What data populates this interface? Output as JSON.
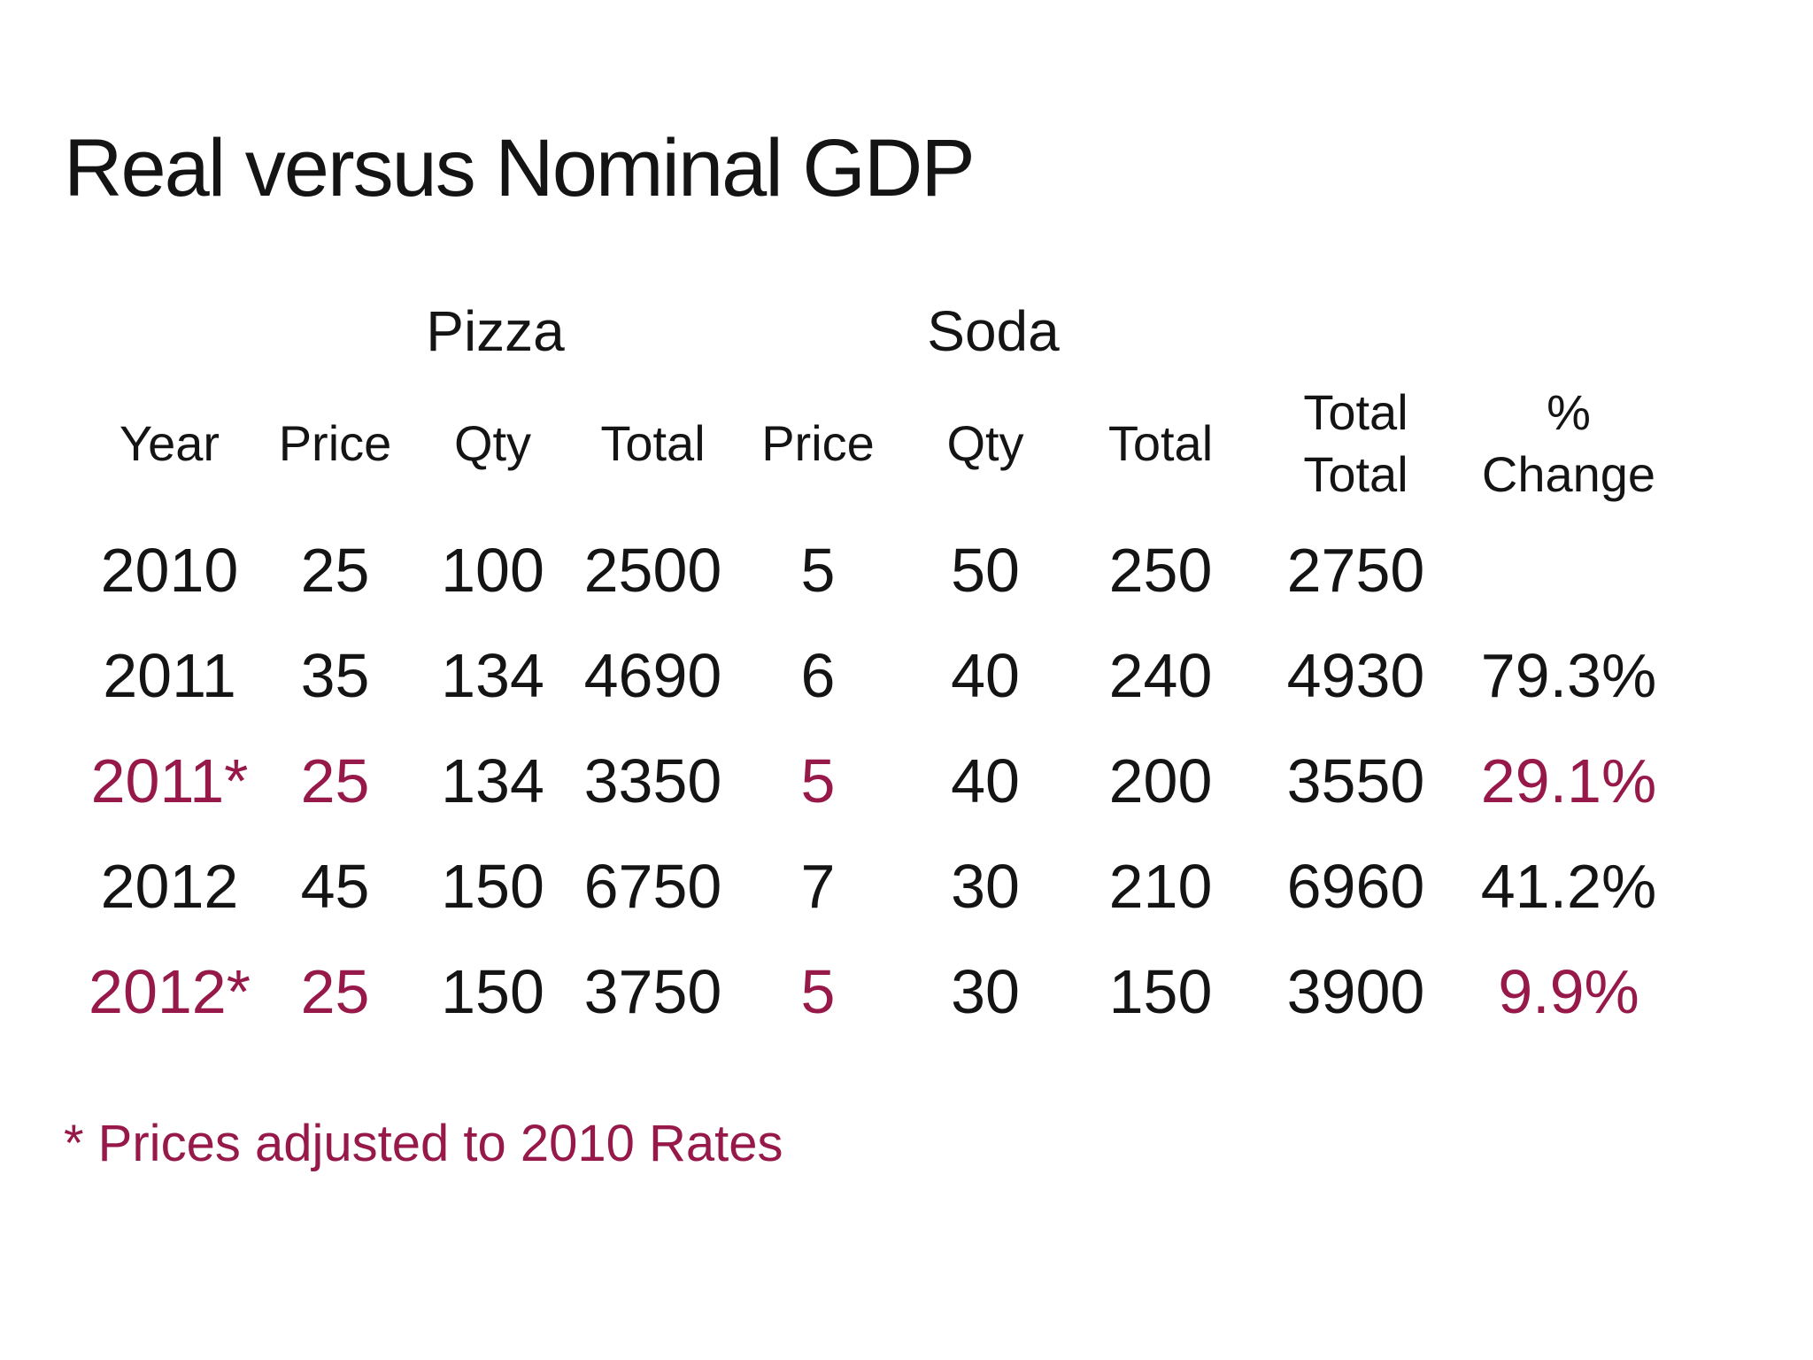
{
  "colors": {
    "background": "#ffffff",
    "text": "#141414",
    "accent": "#96194a"
  },
  "slide": {
    "title": "Real versus Nominal GDP",
    "footnote": "* Prices adjusted to 2010 Rates"
  },
  "table": {
    "group_headers": [
      {
        "label": "Pizza"
      },
      {
        "label": "Soda"
      }
    ],
    "column_headers": [
      "Year",
      "Price",
      "Qty",
      "Total",
      "Price",
      "Qty",
      "Total",
      "Total\nTotal",
      "%\nChange"
    ],
    "rows": [
      {
        "adjusted": false,
        "cells": [
          "2010",
          "25",
          "100",
          "2500",
          "5",
          "50",
          "250",
          "2750",
          ""
        ]
      },
      {
        "adjusted": false,
        "cells": [
          "2011",
          "35",
          "134",
          "4690",
          "6",
          "40",
          "240",
          "4930",
          "79.3%"
        ]
      },
      {
        "adjusted": true,
        "cells": [
          "2011*",
          "25",
          "134",
          "3350",
          "5",
          "40",
          "200",
          "3550",
          "29.1%"
        ]
      },
      {
        "adjusted": false,
        "cells": [
          "2012",
          "45",
          "150",
          "6750",
          "7",
          "30",
          "210",
          "6960",
          "41.2%"
        ]
      },
      {
        "adjusted": true,
        "cells": [
          "2012*",
          "25",
          "150",
          "3750",
          "5",
          "30",
          "150",
          "3900",
          "9.9%"
        ]
      }
    ]
  }
}
